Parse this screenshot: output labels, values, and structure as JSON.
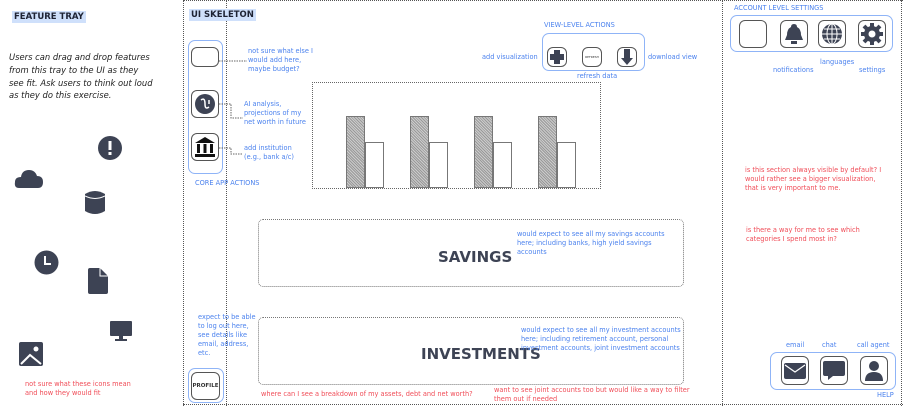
{
  "tray": {
    "title": "FEATURE TRAY",
    "instructions": "Users can drag and drop features from this tray to the UI as they see fit. Ask users to think out loud as they do this exercise.",
    "icons": [
      "alert-icon",
      "cloud-icon",
      "database-icon",
      "clock-icon",
      "document-icon",
      "monitor-icon",
      "image-icon"
    ],
    "note": "not sure what these icons mean and how they would fit"
  },
  "skeleton": {
    "title": "UI SKELETON",
    "core": {
      "label": "CORE APP ACTIONS",
      "notes": [
        "not sure what else I would add here, maybe budget?",
        "AI analysis, projections of my net worth in future",
        "add institution (e.g., bank a/c)"
      ]
    },
    "view_actions": {
      "label": "VIEW-LEVEL ACTIONS",
      "add": "add visualization",
      "refresh_btn": "REFRESH",
      "refresh": "refresh data",
      "download": "download view"
    },
    "chart_data": {
      "type": "bar",
      "categories": [
        "",
        "",
        "",
        ""
      ],
      "series": [
        {
          "values": [
            1.0,
            1.0,
            1.0,
            1.0
          ]
        },
        {
          "values": [
            0.64,
            0.64,
            0.64,
            0.64
          ]
        }
      ]
    },
    "savings": {
      "title": "SAVINGS",
      "note": "would expect to see all my savings accounts here; including banks, high yield savings accounts"
    },
    "investments": {
      "title": "INVESTMENTS",
      "note": "would expect to see all my investment accounts here; including retirement account, personal investment accounts, joint investment accounts"
    },
    "profile": {
      "label": "PROFILE",
      "note": "expect to be able to log out here, see details like email, address, etc."
    },
    "feedback": [
      "where can I see a breakdown of my assets, debt and net worth?",
      "want to see joint accounts too but would like a way to filter them out if needed"
    ]
  },
  "account": {
    "label": "ACCOUNT LEVEL SETTINGS",
    "notifications": "notifications",
    "languages": "languages",
    "settings": "settings",
    "feedback": [
      "is this section always visible by default? I would rather see a bigger visualization, that is very important to me.",
      "is there a way for me to see which categories I spend most in?"
    ]
  },
  "help": {
    "label": "HELP",
    "email": "email",
    "chat": "chat",
    "call": "call agent"
  },
  "colors": {
    "annotation": "#4b82ee",
    "feedback": "#f04d58",
    "icon": "#3d4354"
  }
}
